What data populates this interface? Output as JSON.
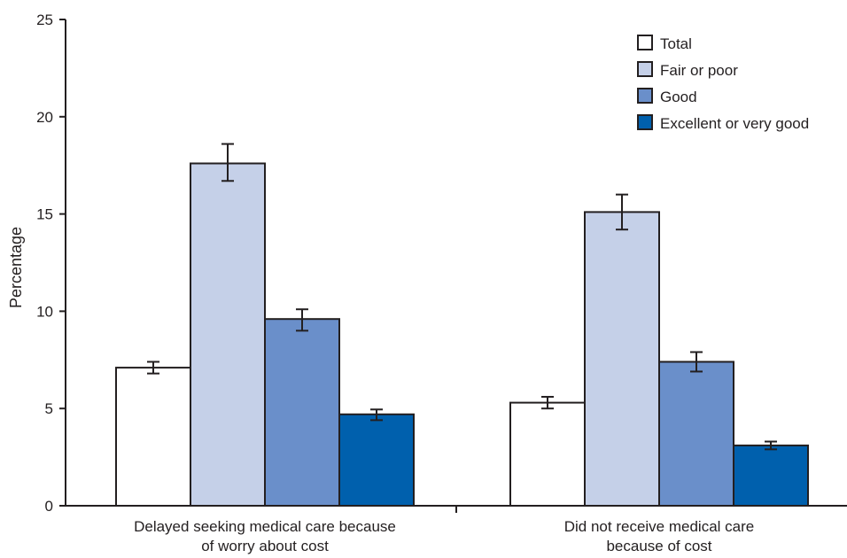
{
  "chart_data": {
    "type": "bar",
    "title": "",
    "xlabel": "",
    "ylabel": "Percentage",
    "ylim": [
      0,
      25
    ],
    "yticks": [
      "0",
      "5",
      "10",
      "15",
      "20",
      "25"
    ],
    "grid": false,
    "legend_position": "top-right",
    "categories": [
      [
        "Delayed seeking medical care because",
        "of worry about cost"
      ],
      [
        "Did not receive medical care",
        "because of cost"
      ]
    ],
    "series": [
      {
        "name": "Total",
        "color": "#ffffff",
        "values": [
          7.1,
          5.3
        ],
        "error_low": [
          6.8,
          5.0
        ],
        "error_high": [
          7.4,
          5.6
        ]
      },
      {
        "name": "Fair or poor",
        "color": "#c5d0e8",
        "values": [
          17.6,
          15.1
        ],
        "error_low": [
          16.7,
          14.2
        ],
        "error_high": [
          18.6,
          16.0
        ]
      },
      {
        "name": "Good",
        "color": "#6a8fca",
        "values": [
          9.6,
          7.4
        ],
        "error_low": [
          9.0,
          6.9
        ],
        "error_high": [
          10.1,
          7.9
        ]
      },
      {
        "name": "Excellent or very good",
        "color": "#0060ad",
        "values": [
          4.7,
          3.1
        ],
        "error_low": [
          4.4,
          2.9
        ],
        "error_high": [
          4.95,
          3.3
        ]
      }
    ]
  }
}
